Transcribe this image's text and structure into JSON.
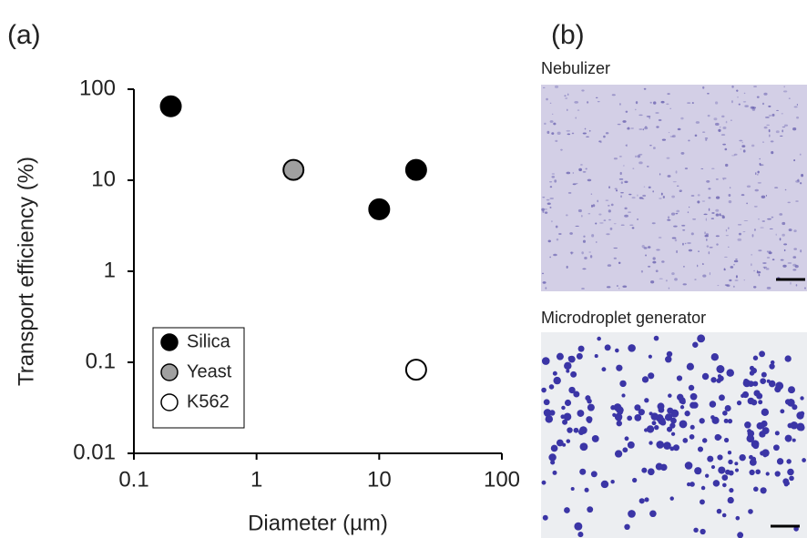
{
  "panel_labels": [
    "(a)",
    "(b)"
  ],
  "chart_data": {
    "type": "scatter",
    "log_x": true,
    "log_y": true,
    "x_label": "Diameter (µm)",
    "y_label": "Transport efficiency (%)",
    "xlim": [
      0.1,
      100
    ],
    "ylim": [
      0.01,
      100
    ],
    "xticks": [
      0.1,
      1,
      10,
      100
    ],
    "yticks": [
      0.01,
      0.1,
      1,
      10,
      100
    ],
    "legend": "lower left",
    "series": [
      {
        "name": "Silica",
        "color": "#000000",
        "x": [
          0.2,
          10,
          20
        ],
        "values": [
          65,
          4.8,
          13
        ]
      },
      {
        "name": "Yeast",
        "color": "#a0a0a0",
        "x": [
          2
        ],
        "values": [
          13
        ]
      },
      {
        "name": "K562",
        "color": "#ffffff",
        "x": [
          20
        ],
        "values": [
          0.083
        ]
      }
    ]
  },
  "images": [
    {
      "title": "Nebulizer"
    },
    {
      "title": "Microdroplet generator"
    }
  ]
}
